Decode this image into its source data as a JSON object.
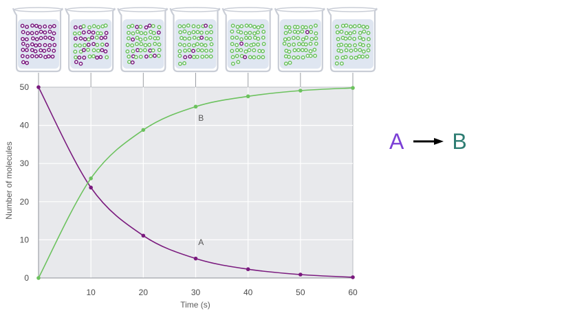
{
  "colors": {
    "series_A": "#7a1a7e",
    "series_B": "#6cc25e",
    "plot_background": "#e8e9ec",
    "grid": "#ffffff",
    "label_A": "#7b3fd6",
    "label_B": "#2e7d73",
    "arrow": "#000000",
    "beaker_glass": "#c9cdd6",
    "beaker_liquid": "#dfe6f1"
  },
  "equation": {
    "reactant": "A",
    "product": "B"
  },
  "chart_data": {
    "type": "line",
    "title": "",
    "xlabel": "Time (s)",
    "ylabel": "Number of molecules",
    "xlim": [
      0,
      60
    ],
    "ylim": [
      0,
      50
    ],
    "x_ticks": [
      "10",
      "20",
      "30",
      "40",
      "50",
      "60"
    ],
    "y_ticks": [
      "0",
      "10",
      "20",
      "30",
      "40",
      "50"
    ],
    "grid": true,
    "x": [
      0,
      10,
      20,
      30,
      40,
      50,
      60
    ],
    "series": [
      {
        "name": "A",
        "values": [
          50,
          23.7,
          11.1,
          5.1,
          2.3,
          0.9,
          0.2
        ]
      },
      {
        "name": "B",
        "values": [
          0,
          26.1,
          38.8,
          44.9,
          47.6,
          49.1,
          49.8
        ]
      }
    ],
    "annotations": [
      {
        "text": "B",
        "x": 30.5,
        "y": 41.2
      },
      {
        "text": "A",
        "x": 30.5,
        "y": 8.6
      }
    ],
    "beakers": [
      {
        "time": 0,
        "molecules_A": 50,
        "molecules_B": 0
      },
      {
        "time": 10,
        "molecules_A": 24,
        "molecules_B": 26
      },
      {
        "time": 20,
        "molecules_A": 11,
        "molecules_B": 39
      },
      {
        "time": 30,
        "molecules_A": 5,
        "molecules_B": 45
      },
      {
        "time": 40,
        "molecules_A": 2,
        "molecules_B": 48
      },
      {
        "time": 50,
        "molecules_A": 1,
        "molecules_B": 49
      },
      {
        "time": 60,
        "molecules_A": 0,
        "molecules_B": 50
      }
    ]
  }
}
